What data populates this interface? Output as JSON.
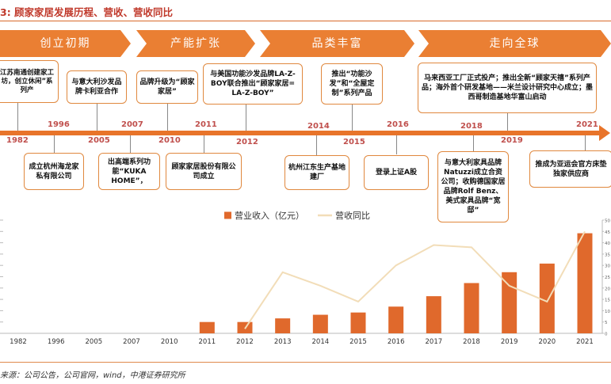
{
  "title": "3: 顾家家居发展历程、营收、营收同比",
  "phases": [
    "创立初期",
    "产能扩张",
    "品类丰富",
    "走向全球"
  ],
  "timeline_years": [
    "1982",
    "1996",
    "2005",
    "2007",
    "2010",
    "2011",
    "2012",
    "2014",
    "2015",
    "2016",
    "2018",
    "2019",
    "2021"
  ],
  "events_above": [
    "江苏南通创建家工坊，创立休闲”系列产",
    "与意大利沙发品牌卡利亚合作",
    "品牌升级为“顾家家居”",
    "与美国功能沙发品牌LA-Z-BOY联合推出“顾家家居= LA-Z-BOY”",
    "推出“功能沙发”和“全屋定制”系列产品",
    "马来西亚工厂正式投产；推出全新“顾家天禧”系列产品；海外首个研发基地——米兰设计研究中心成立；墨西哥制造基地华富山启动"
  ],
  "events_below": [
    "成立杭州海龙家私有限公司",
    "出高端系列功能“KUKA HOME”，",
    "顾家家居股份有限公司成立",
    "杭州江东生产基地建厂",
    "登录上证A股",
    "与意大利家具品牌Natuzzi成立合资公司；收购德国家居品牌Rolf Benz、美式家具品牌“宽邸”",
    "推成为亚运会官方床垫独家供应商"
  ],
  "source": "来源：公司公告，公司官网，wind，中港证券研究所",
  "chart_data": {
    "type": "bar",
    "categories": [
      "1982",
      "1996",
      "2005",
      "2007",
      "2010",
      "2011",
      "2012",
      "2013",
      "2014",
      "2015",
      "2016",
      "2017",
      "2018",
      "2019",
      "2020",
      "2021"
    ],
    "series": [
      {
        "name": "营业收入（亿元）",
        "type": "bar",
        "color": "#e0692c",
        "values": [
          null,
          null,
          null,
          null,
          null,
          25,
          25,
          33,
          41,
          46,
          59,
          82,
          111,
          135,
          154,
          221
        ]
      },
      {
        "name": "营收同比",
        "type": "line",
        "color": "#f2ddb8",
        "values": [
          null,
          null,
          null,
          null,
          null,
          null,
          2,
          27,
          21,
          14,
          30,
          39,
          38,
          21,
          14,
          45
        ]
      }
    ],
    "ylim_left": [
      0,
      250
    ],
    "ylim_right": [
      0,
      50
    ],
    "right_ticks": [
      "50",
      "45",
      "40",
      "35",
      "30",
      "25",
      "20",
      "15",
      "10",
      "5",
      "0"
    ],
    "legend_position": "top-center"
  },
  "colors": {
    "accent": "#e8742a",
    "bar": "#e0692c",
    "line": "#f2ddb8",
    "year": "#c0504d"
  }
}
